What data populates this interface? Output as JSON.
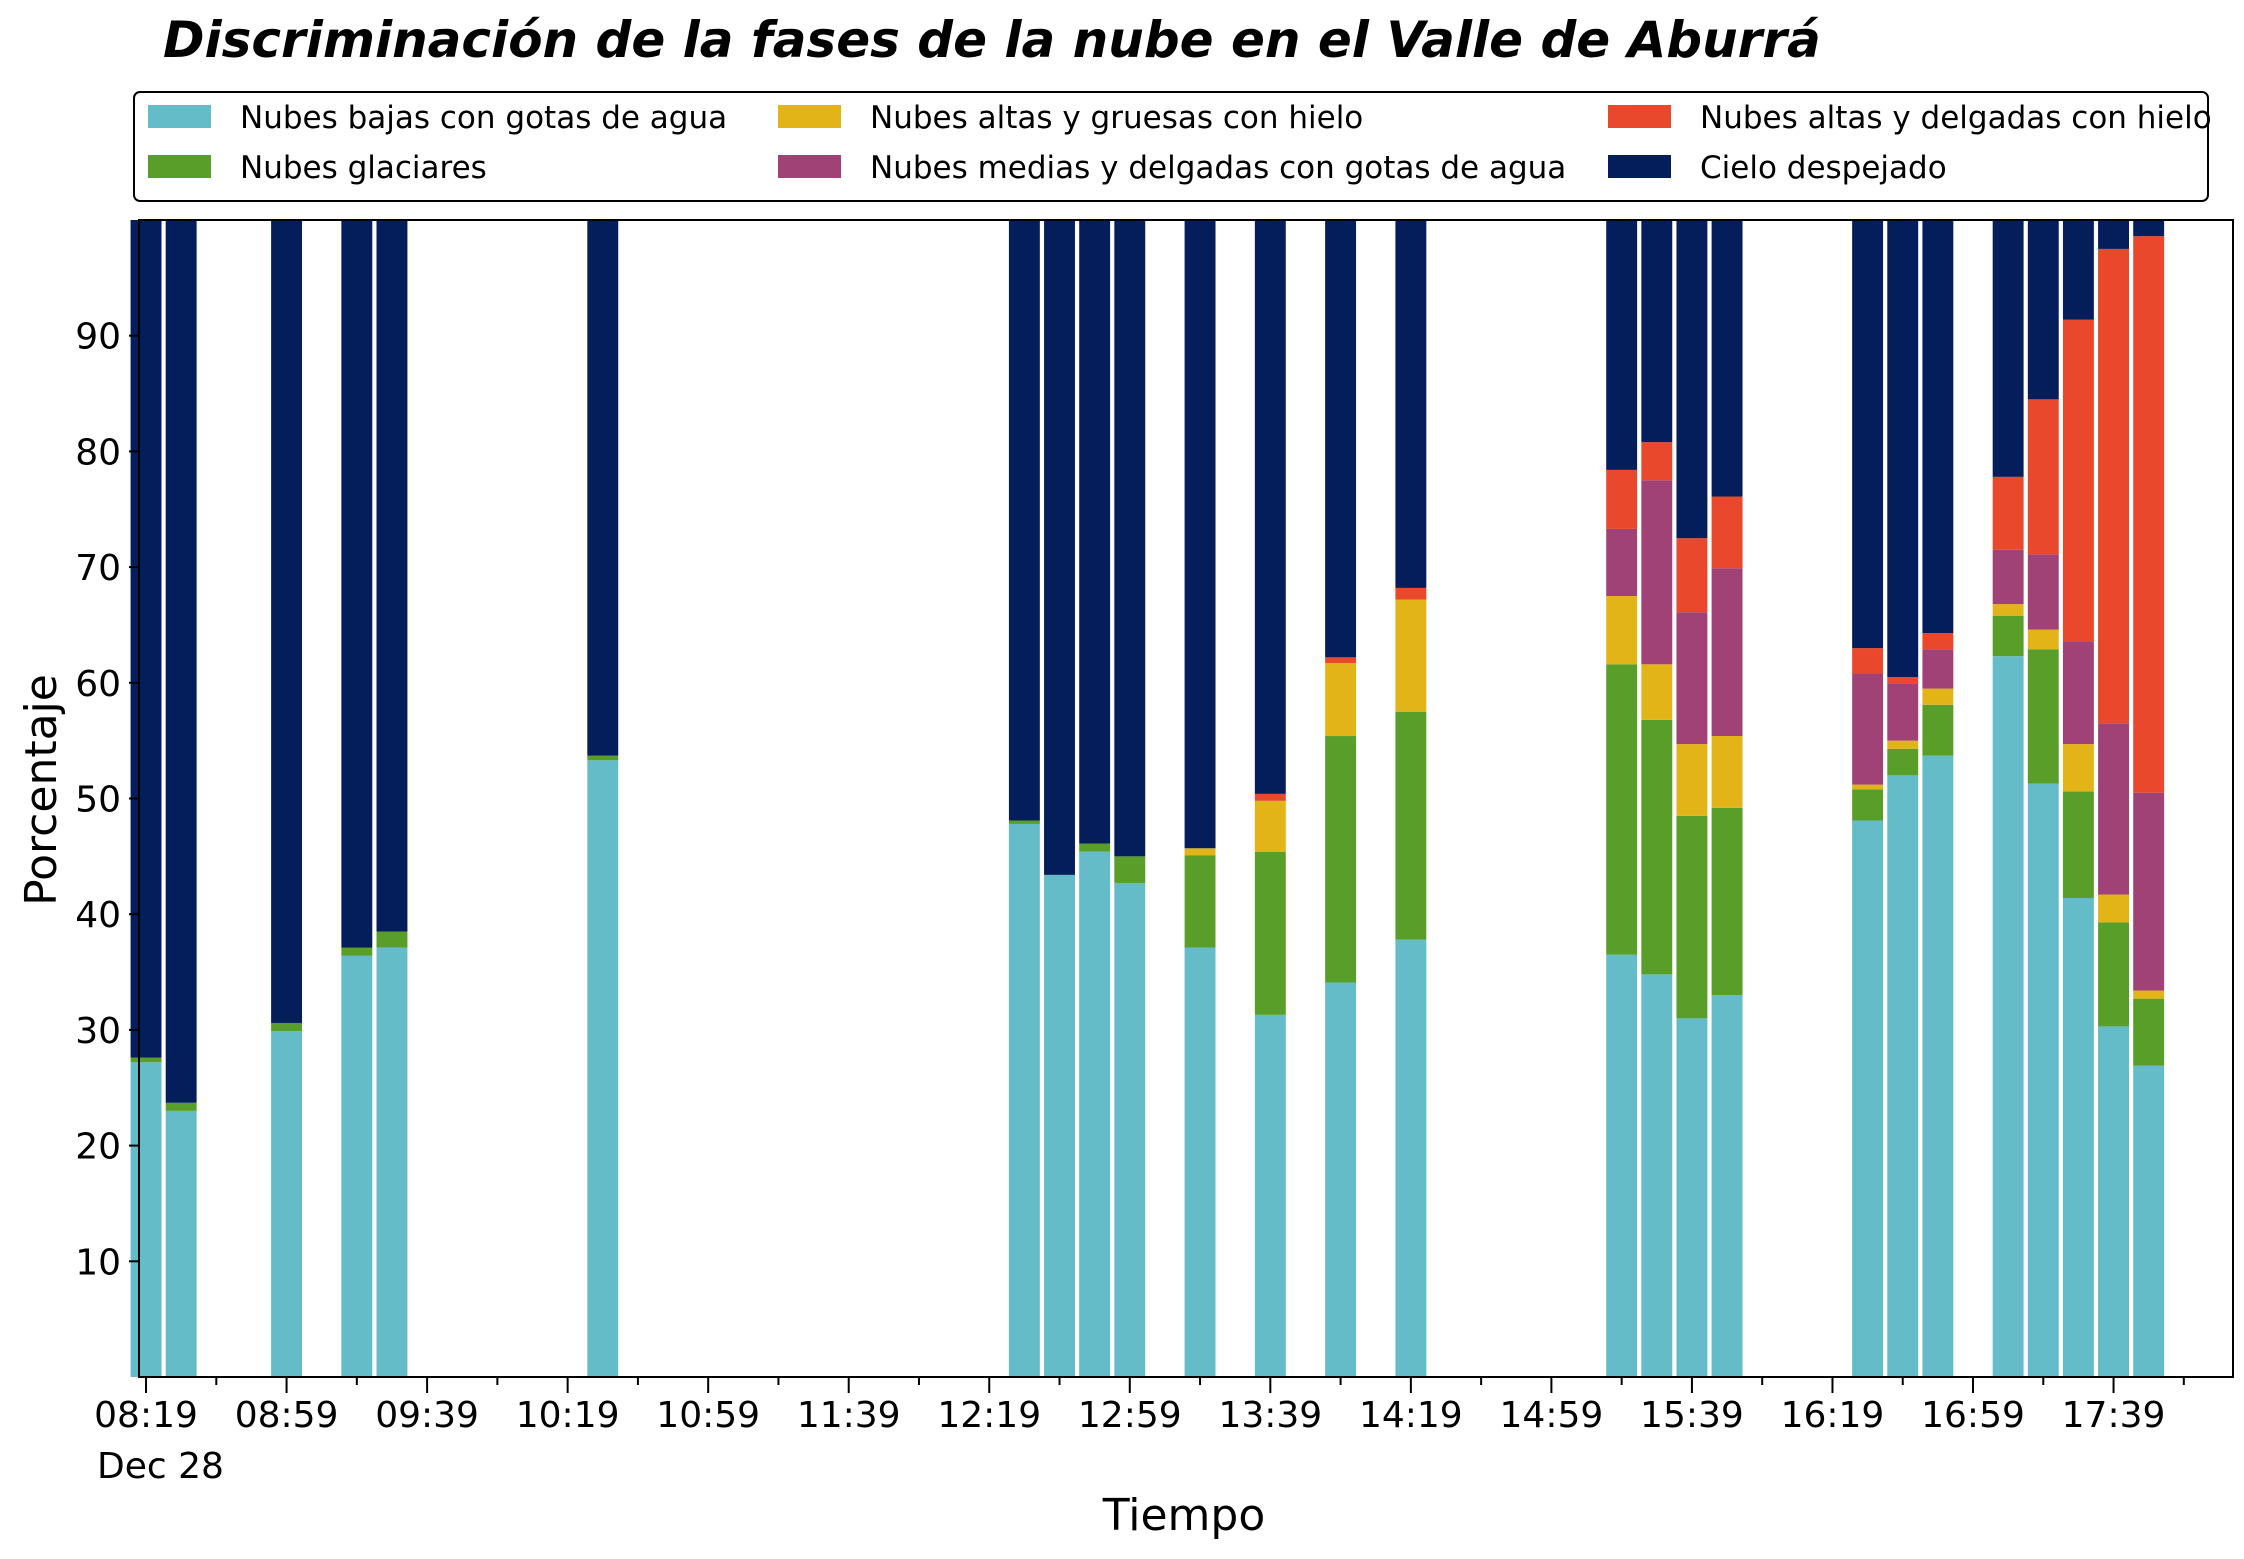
{
  "chart_data": {
    "type": "bar",
    "stacked": true,
    "title": "Discriminación de la fases de la nube en el Valle de Aburrá",
    "xlabel": "Tiempo",
    "ylabel": "Porcentaje",
    "ylim": [
      0,
      100
    ],
    "yticks": [
      10,
      20,
      30,
      40,
      50,
      60,
      70,
      80,
      90
    ],
    "xticks": [
      "08:19",
      "08:59",
      "09:39",
      "10:19",
      "10:59",
      "11:39",
      "12:19",
      "12:59",
      "13:39",
      "14:19",
      "14:59",
      "15:39",
      "16:19",
      "16:59",
      "17:39"
    ],
    "xtick_sublabel": "Dec 28",
    "x_minutes_range": [
      497,
      1093
    ],
    "grid": false,
    "legend_position": "top, above plot, 3 columns",
    "x": [
      "08:19",
      "08:29",
      "08:59",
      "09:19",
      "09:29",
      "10:29",
      "12:29",
      "12:39",
      "12:49",
      "12:59",
      "13:19",
      "13:39",
      "13:59",
      "14:19",
      "15:19",
      "15:29",
      "15:39",
      "15:49",
      "16:29",
      "16:39",
      "16:49",
      "17:09",
      "17:19",
      "17:29",
      "17:39",
      "17:49"
    ],
    "series": [
      {
        "name": "Nubes bajas con gotas de agua",
        "color": "#64bcc8",
        "values": [
          27.2,
          23.0,
          29.9,
          36.4,
          37.1,
          53.3,
          47.8,
          43.4,
          45.4,
          42.7,
          37.1,
          31.3,
          34.1,
          37.8,
          36.5,
          34.8,
          31.0,
          33.0,
          48.1,
          52.0,
          53.7,
          62.3,
          51.3,
          41.4,
          30.3,
          26.9
        ]
      },
      {
        "name": "Nubes glaciares",
        "color": "#5a9e2a",
        "values": [
          0.4,
          0.7,
          0.7,
          0.7,
          1.4,
          0.4,
          0.3,
          0.0,
          0.7,
          2.3,
          8.0,
          14.1,
          21.3,
          19.7,
          25.1,
          22.0,
          17.5,
          16.2,
          2.7,
          2.3,
          4.4,
          3.5,
          11.6,
          9.2,
          9.0,
          5.8
        ]
      },
      {
        "name": "Nubes altas y gruesas con hielo",
        "color": "#e2b418",
        "values": [
          0,
          0,
          0,
          0,
          0,
          0,
          0,
          0,
          0,
          0,
          0.6,
          4.4,
          6.3,
          9.7,
          5.9,
          4.8,
          6.2,
          6.2,
          0.4,
          0.7,
          1.4,
          1.0,
          1.7,
          4.1,
          2.4,
          0.7
        ]
      },
      {
        "name": "Nubes medias y delgadas con gotas de agua",
        "color": "#a04275",
        "values": [
          0,
          0,
          0,
          0,
          0,
          0,
          0,
          0,
          0,
          0,
          0,
          0,
          0,
          0,
          5.8,
          15.9,
          11.4,
          14.5,
          9.6,
          4.9,
          3.4,
          4.7,
          6.5,
          8.9,
          14.8,
          17.1
        ]
      },
      {
        "name": "Nubes altas y delgadas con hielo",
        "color": "#e9482d",
        "values": [
          0,
          0,
          0,
          0,
          0,
          0,
          0,
          0,
          0,
          0,
          0,
          0.6,
          0.5,
          1.0,
          5.1,
          3.3,
          6.4,
          6.2,
          2.2,
          0.6,
          1.4,
          6.3,
          13.4,
          27.8,
          41.0,
          48.1
        ]
      },
      {
        "name": "Cielo despejado",
        "color": "#041e5c",
        "values": [
          72.4,
          76.3,
          69.4,
          62.9,
          61.5,
          46.3,
          51.9,
          56.6,
          53.9,
          55.0,
          54.3,
          49.6,
          37.8,
          31.8,
          21.6,
          19.2,
          27.5,
          23.9,
          37.0,
          39.5,
          35.7,
          22.2,
          15.5,
          8.6,
          2.5,
          1.4
        ]
      }
    ]
  }
}
